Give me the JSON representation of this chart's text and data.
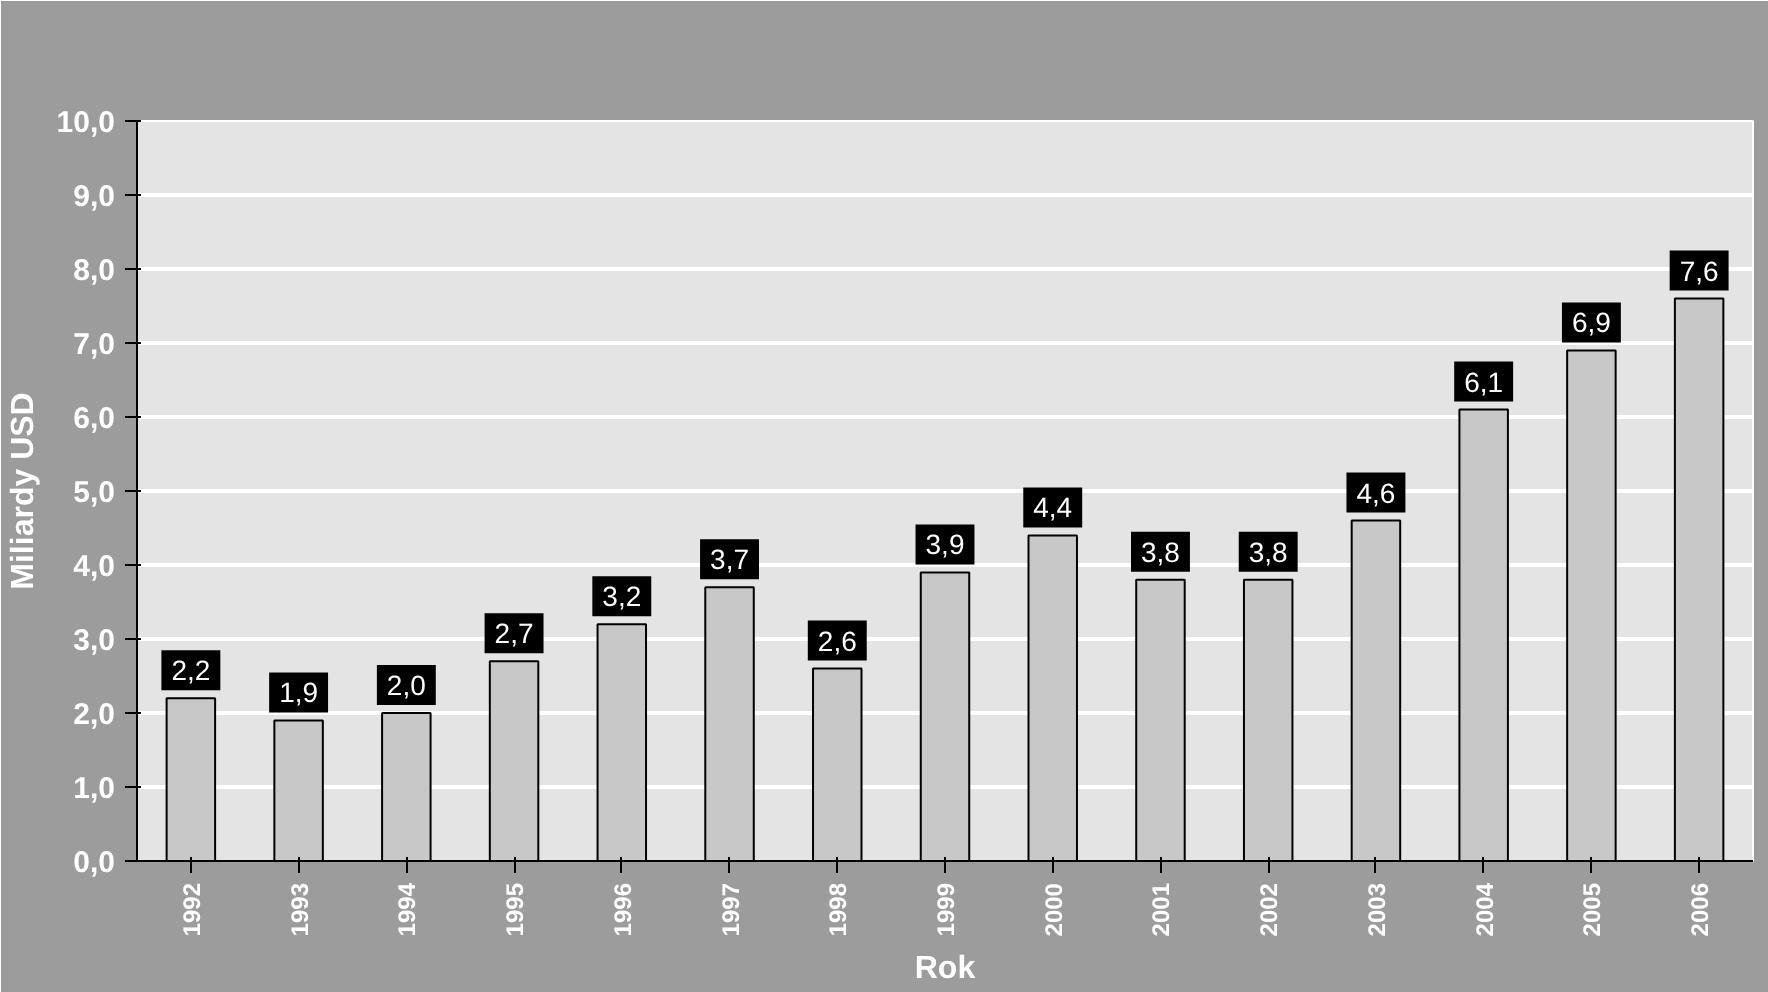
{
  "chart_data": {
    "type": "bar",
    "xlabel": "Rok",
    "ylabel": "Miliardy USD",
    "categories": [
      "1992",
      "1993",
      "1994",
      "1995",
      "1996",
      "1997",
      "1998",
      "1999",
      "2000",
      "2001",
      "2002",
      "2003",
      "2004",
      "2005",
      "2006"
    ],
    "values": [
      2.2,
      1.9,
      2.0,
      2.7,
      3.2,
      3.7,
      2.6,
      3.9,
      4.4,
      3.8,
      3.8,
      4.6,
      6.1,
      6.9,
      7.6
    ],
    "value_labels": [
      "2,2",
      "1,9",
      "2,0",
      "2,7",
      "3,2",
      "3,7",
      "2,6",
      "3,9",
      "4,4",
      "3,8",
      "3,8",
      "4,6",
      "6,1",
      "6,9",
      "7,6"
    ],
    "color": "#c8c8c8",
    "ylim": [
      0,
      10
    ],
    "yticks": [
      {
        "value": 0,
        "label": "0,0"
      },
      {
        "value": 1,
        "label": "1,0"
      },
      {
        "value": 2,
        "label": "2,0"
      },
      {
        "value": 3,
        "label": "3,0"
      },
      {
        "value": 4,
        "label": "4,0"
      },
      {
        "value": 5,
        "label": "5,0"
      },
      {
        "value": 6,
        "label": "6,0"
      },
      {
        "value": 7,
        "label": "7,0"
      },
      {
        "value": 8,
        "label": "8,0"
      },
      {
        "value": 9,
        "label": "9,0"
      },
      {
        "value": 10,
        "label": "10,0"
      }
    ],
    "grid": "y"
  }
}
